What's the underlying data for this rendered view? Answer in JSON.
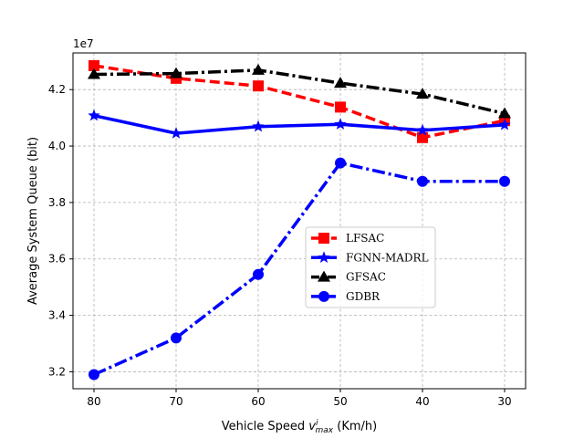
{
  "chart_data": {
    "type": "line",
    "xlabel_main": "Vehicle Speed ",
    "xlabel_symbol": "v",
    "xlabel_sup": "i",
    "xlabel_sub": "max",
    "xlabel_unit": " (Km/h)",
    "ylabel": "Average System Queue (bit)",
    "y_offset_text": "1e7",
    "categories": [
      "80",
      "70",
      "60",
      "50",
      "40",
      "30"
    ],
    "x_inverted": true,
    "ylim": [
      3.14,
      4.33
    ],
    "yticks": [
      3.2,
      3.4,
      3.6,
      3.8,
      4.0,
      4.2
    ],
    "ytick_labels": [
      "3.2",
      "3.4",
      "3.6",
      "3.8",
      "4.0",
      "4.2"
    ],
    "grid": true,
    "legend_position": "center-right",
    "series": [
      {
        "name": "LFSAC",
        "values": [
          4.285,
          4.24,
          4.213,
          4.138,
          4.03,
          4.09
        ],
        "color": "#ff0000",
        "marker": "square",
        "linestyle": "dashed"
      },
      {
        "name": "FGNN-MADRL",
        "values": [
          4.108,
          4.045,
          4.069,
          4.077,
          4.056,
          4.075
        ],
        "color": "#0000ff",
        "marker": "star",
        "linestyle": "solid"
      },
      {
        "name": "GFSAC",
        "values": [
          4.254,
          4.257,
          4.269,
          4.223,
          4.184,
          4.115
        ],
        "color": "#000000",
        "marker": "triangle",
        "linestyle": "dashdot"
      },
      {
        "name": "GDBR",
        "values": [
          3.19,
          3.32,
          3.545,
          3.94,
          3.875,
          3.875
        ],
        "color": "#0000ff",
        "marker": "circle",
        "linestyle": "dashdot"
      }
    ]
  }
}
